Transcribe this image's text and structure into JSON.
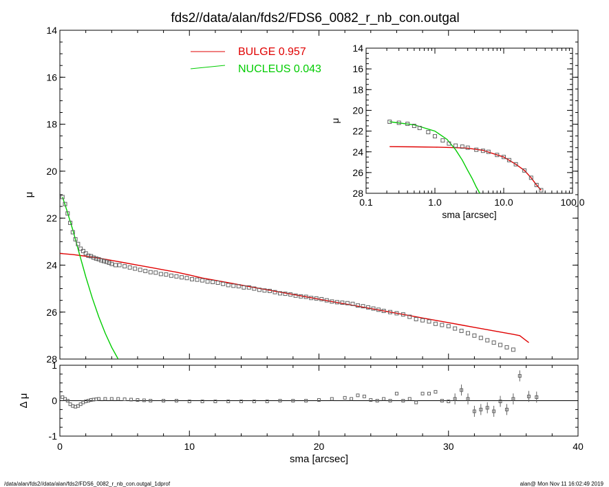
{
  "title": "fds2//data/alan/fds2/FDS6_0082_r_nb_con.outgal",
  "footer": {
    "left": "/data/alan/fds2//data/alan/fds2/FDS6_0082_r_nb_con.outgal_1dprof",
    "right": "alan@  Mon Nov 11 16:02:49 2019"
  },
  "colors": {
    "data": "#606060",
    "bulge": "#e00000",
    "nucleus": "#00cc00",
    "axis": "#000000"
  },
  "chart_data": [
    {
      "id": "main",
      "type": "scatter",
      "xlabel": "",
      "ylabel": "μ",
      "xlim": [
        0,
        40
      ],
      "ylim": [
        14,
        28
      ],
      "y_inverted": true,
      "yticks": [
        14,
        16,
        18,
        20,
        22,
        24,
        26,
        28
      ],
      "legend": [
        {
          "name": "BULGE",
          "value": "0.957",
          "color": "#e00000"
        },
        {
          "name": "NUCLEUS",
          "value": "0.043",
          "color": "#00cc00"
        }
      ],
      "data_points": {
        "x": [
          0.2,
          0.4,
          0.6,
          0.8,
          1.0,
          1.2,
          1.4,
          1.6,
          1.8,
          2.0,
          2.2,
          2.4,
          2.6,
          2.8,
          3.0,
          3.2,
          3.4,
          3.6,
          3.8,
          4.0,
          4.3,
          4.6,
          5.0,
          5.4,
          5.8,
          6.2,
          6.6,
          7.0,
          7.4,
          7.8,
          8.2,
          8.6,
          9.0,
          9.4,
          9.8,
          10.2,
          10.6,
          11.0,
          11.4,
          11.8,
          12.2,
          12.6,
          13.0,
          13.4,
          13.8,
          14.2,
          14.6,
          15.0,
          15.4,
          15.8,
          16.2,
          16.6,
          17.0,
          17.4,
          17.8,
          18.2,
          18.6,
          19.0,
          19.4,
          19.8,
          20.2,
          20.6,
          21.0,
          21.4,
          21.8,
          22.2,
          22.6,
          23.0,
          23.4,
          23.8,
          24.2,
          24.6,
          25.0,
          25.5,
          26.0,
          26.5,
          27.0,
          27.5,
          28.0,
          28.5,
          29.0,
          29.5,
          30.0,
          30.5,
          31.0,
          31.5,
          32.0,
          32.5,
          33.0,
          33.5,
          34.0,
          34.5,
          35.0
        ],
        "y": [
          21.1,
          21.4,
          21.8,
          22.2,
          22.6,
          22.9,
          23.1,
          23.3,
          23.4,
          23.5,
          23.6,
          23.62,
          23.68,
          23.72,
          23.75,
          23.8,
          23.83,
          23.86,
          23.9,
          23.95,
          24.0,
          24.0,
          24.05,
          24.1,
          24.15,
          24.2,
          24.25,
          24.3,
          24.32,
          24.38,
          24.4,
          24.45,
          24.48,
          24.52,
          24.55,
          24.6,
          24.62,
          24.65,
          24.7,
          24.72,
          24.75,
          24.8,
          24.85,
          24.88,
          24.9,
          24.95,
          24.95,
          25.0,
          25.05,
          25.08,
          25.1,
          25.15,
          25.2,
          25.22,
          25.25,
          25.3,
          25.33,
          25.35,
          25.4,
          25.42,
          25.45,
          25.5,
          25.55,
          25.58,
          25.6,
          25.62,
          25.65,
          25.72,
          25.75,
          25.8,
          25.85,
          25.9,
          25.95,
          26.0,
          26.05,
          26.1,
          26.2,
          26.3,
          26.35,
          26.4,
          26.5,
          26.55,
          26.6,
          26.7,
          26.8,
          26.9,
          27.0,
          27.1,
          27.2,
          27.3,
          27.4,
          27.5,
          27.6
        ]
      },
      "bulge_curve": {
        "x": [
          0,
          1,
          2,
          3,
          4,
          5,
          6,
          7,
          8,
          9,
          10,
          11,
          12,
          13,
          14,
          15,
          16,
          17,
          18,
          19,
          20,
          21,
          22,
          23,
          24,
          25,
          26,
          27,
          28,
          29,
          30,
          31,
          32,
          33,
          34,
          35,
          35.5,
          36.2
        ],
        "y": [
          23.5,
          23.55,
          23.62,
          23.7,
          23.8,
          23.9,
          24.0,
          24.1,
          24.2,
          24.3,
          24.42,
          24.55,
          24.65,
          24.75,
          24.85,
          24.95,
          25.05,
          25.15,
          25.25,
          25.35,
          25.45,
          25.55,
          25.65,
          25.75,
          25.85,
          25.95,
          26.05,
          26.15,
          26.25,
          26.35,
          26.45,
          26.55,
          26.65,
          26.75,
          26.85,
          26.95,
          27.0,
          27.3
        ]
      },
      "nucleus_curve": {
        "x": [
          0.2,
          0.5,
          1.0,
          1.5,
          2.0,
          2.5,
          3.0,
          3.5,
          4.0,
          4.5
        ],
        "y": [
          21.1,
          21.6,
          22.5,
          23.5,
          24.5,
          25.4,
          26.2,
          26.9,
          27.5,
          28.0
        ]
      }
    },
    {
      "id": "residual",
      "type": "scatter",
      "xlabel": "sma [arcsec]",
      "ylabel": "Δ μ",
      "xlim": [
        0,
        40
      ],
      "ylim": [
        -1,
        1
      ],
      "xticks": [
        0,
        10,
        20,
        30,
        40
      ],
      "yticks": [
        -1,
        0,
        1
      ],
      "x": [
        0.2,
        0.4,
        0.6,
        0.8,
        1.0,
        1.2,
        1.4,
        1.6,
        1.8,
        2.0,
        2.2,
        2.4,
        2.6,
        2.8,
        3.0,
        3.5,
        4.0,
        4.5,
        5.0,
        5.5,
        6.0,
        6.5,
        7.0,
        8.0,
        9.0,
        10.0,
        11.0,
        12.0,
        13.0,
        14.0,
        15.0,
        16.0,
        17.0,
        18.0,
        19.0,
        20.0,
        21.0,
        22.0,
        22.5,
        23.0,
        23.5,
        24.0,
        24.5,
        25.0,
        25.5,
        26.0,
        26.5,
        27.0,
        27.5,
        28.0,
        28.5,
        29.0,
        29.5,
        30.0,
        30.5,
        31.0,
        31.5,
        32.0,
        32.5,
        33.0,
        33.5,
        34.0,
        34.5,
        35.0,
        35.5,
        36.2,
        36.8
      ],
      "y": [
        0.1,
        0.05,
        0.0,
        -0.1,
        -0.15,
        -0.17,
        -0.15,
        -0.1,
        -0.05,
        -0.02,
        0.0,
        0.02,
        0.03,
        0.04,
        0.05,
        0.05,
        0.05,
        0.05,
        0.04,
        0.03,
        0.02,
        0.01,
        0.0,
        0.0,
        0.0,
        -0.02,
        -0.02,
        -0.02,
        -0.02,
        -0.02,
        -0.02,
        -0.02,
        0.0,
        0.0,
        0.0,
        0.02,
        0.05,
        0.08,
        0.05,
        0.15,
        0.12,
        0.02,
        0.0,
        0.05,
        0.0,
        0.2,
        0.0,
        0.05,
        -0.05,
        0.2,
        0.2,
        0.25,
        0.0,
        -0.02,
        0.05,
        0.3,
        0.05,
        -0.3,
        -0.25,
        -0.2,
        -0.3,
        -0.02,
        -0.25,
        0.05,
        0.7,
        0.12,
        0.1
      ]
    },
    {
      "id": "inset",
      "type": "scatter",
      "xlabel": "sma [arcsec]",
      "ylabel": "μ",
      "xscale": "log",
      "xlim": [
        0.1,
        100
      ],
      "ylim": [
        14,
        28
      ],
      "y_inverted": true,
      "xticks": [
        "0.1",
        "1.0",
        "10.0",
        "100.0"
      ],
      "yticks": [
        14,
        16,
        18,
        20,
        22,
        24,
        26,
        28
      ],
      "data_points": {
        "x": [
          0.22,
          0.3,
          0.4,
          0.5,
          0.6,
          0.8,
          1.0,
          1.3,
          1.6,
          2.0,
          2.5,
          3.0,
          4.0,
          5.0,
          6.0,
          8.0,
          10.0,
          12.0,
          15.0,
          20.0,
          25.0,
          30.0,
          35.0
        ],
        "y": [
          21.1,
          21.2,
          21.3,
          21.5,
          21.7,
          22.1,
          22.5,
          22.9,
          23.2,
          23.4,
          23.5,
          23.6,
          23.8,
          23.9,
          24.0,
          24.3,
          24.5,
          24.8,
          25.2,
          25.8,
          26.5,
          27.2,
          27.7
        ]
      },
      "bulge_curve": {
        "x": [
          0.22,
          0.5,
          1.0,
          2.0,
          3.0,
          5.0,
          8.0,
          10.0,
          15.0,
          20.0,
          25.0,
          30.0,
          35.0
        ],
        "y": [
          23.5,
          23.52,
          23.55,
          23.6,
          23.65,
          23.85,
          24.3,
          24.5,
          25.2,
          25.8,
          26.5,
          27.2,
          27.7
        ]
      },
      "nucleus_curve": {
        "x": [
          0.22,
          0.5,
          1.0,
          1.5,
          2.0,
          2.5,
          3.0,
          3.5,
          4.0,
          4.5
        ],
        "y": [
          21.1,
          21.4,
          22.0,
          22.8,
          23.8,
          24.8,
          25.8,
          26.6,
          27.4,
          28.0
        ]
      }
    }
  ]
}
